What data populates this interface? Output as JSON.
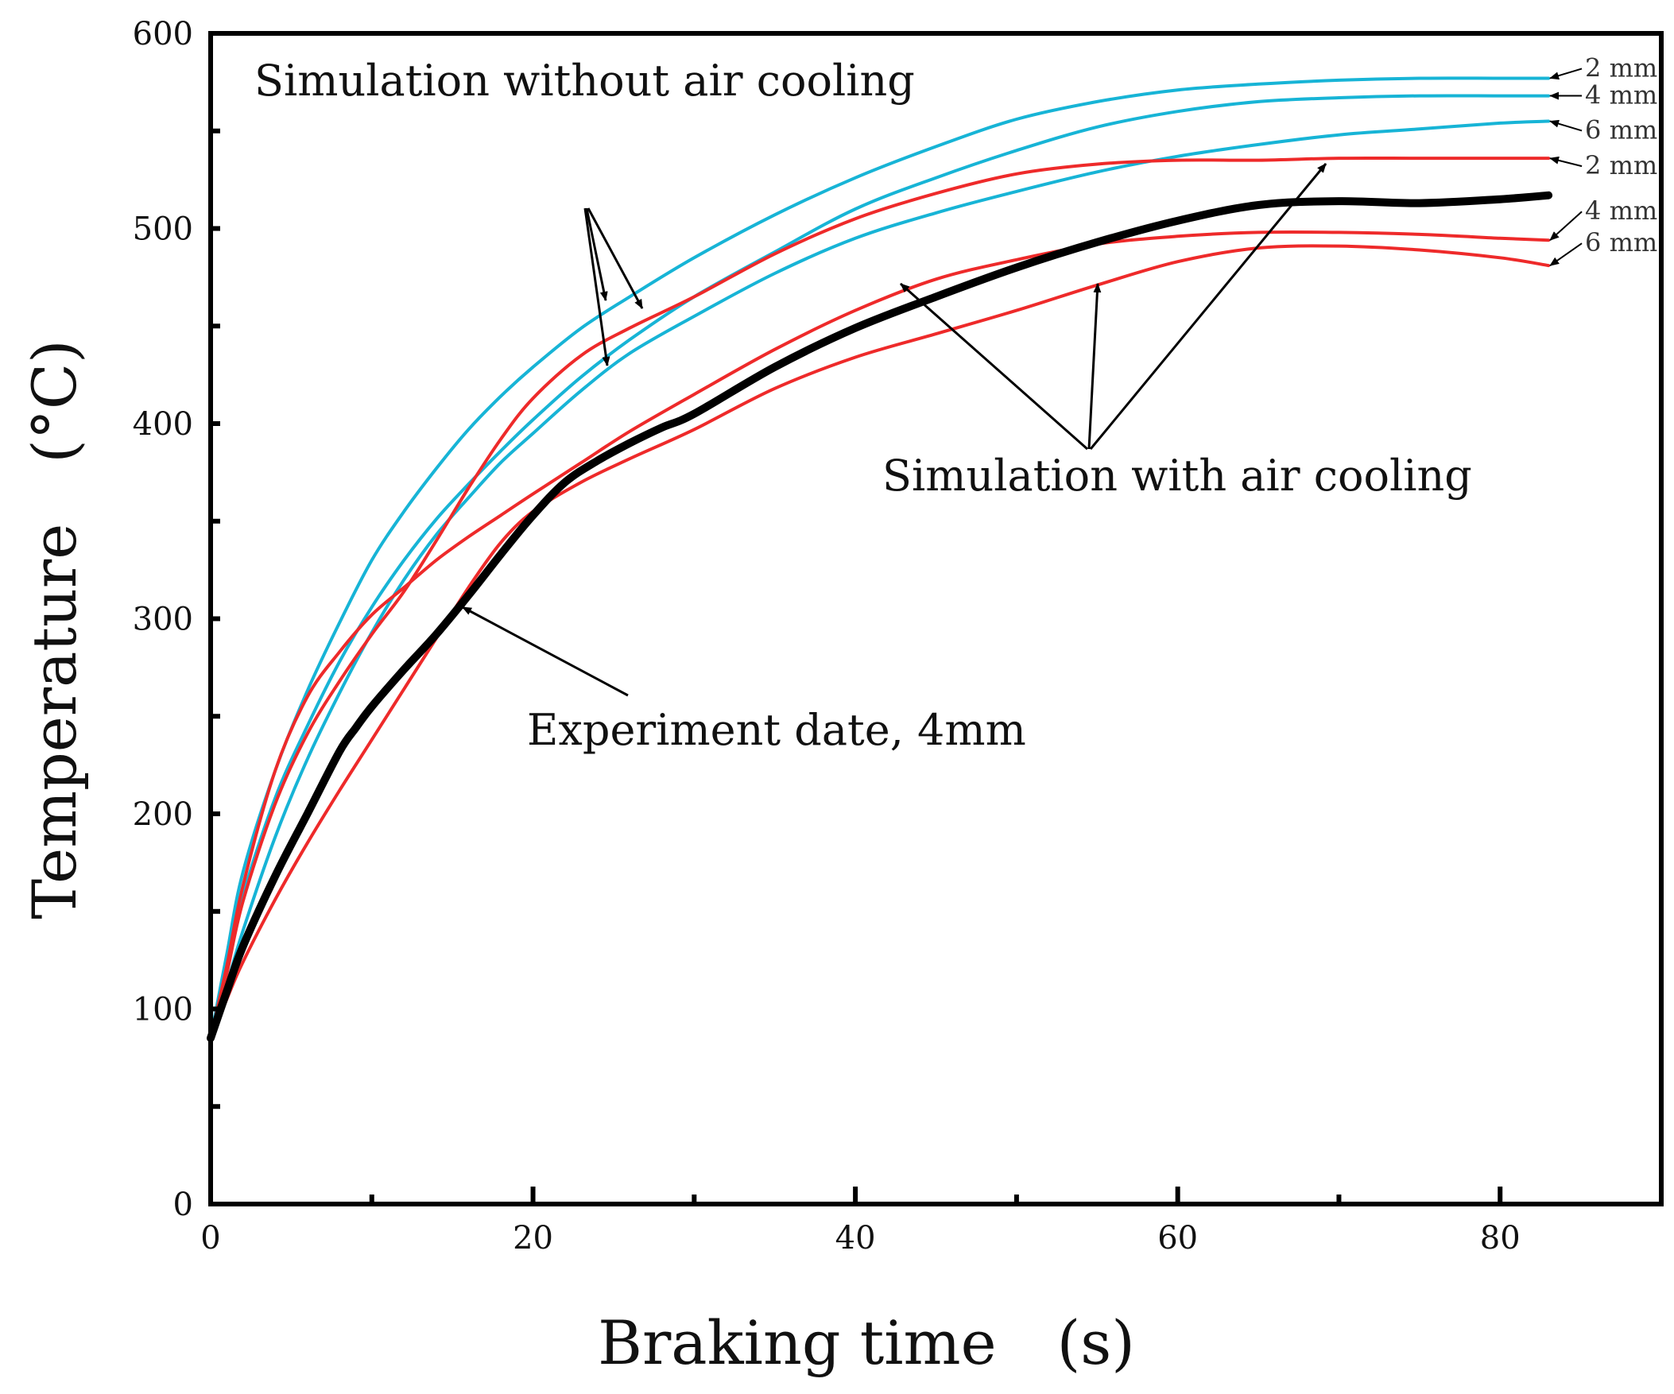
{
  "chart_data": {
    "type": "line",
    "title": "",
    "xlabel": "Braking time　(s)",
    "ylabel": "Temperature　(°C)",
    "xlim": [
      0,
      90
    ],
    "ylim": [
      0,
      600
    ],
    "x_ticks": [
      0,
      20,
      40,
      60,
      80
    ],
    "x_tick_labels": [
      "0",
      "20",
      "40",
      "60",
      "80"
    ],
    "y_ticks": [
      0,
      100,
      200,
      300,
      400,
      500,
      600
    ],
    "y_tick_labels": [
      "0",
      "100",
      "200",
      "300",
      "400",
      "500",
      "600"
    ],
    "grid": false,
    "colors": {
      "without_air_cooling": "#17b4d6",
      "with_air_cooling": "#ee2a2a",
      "experiment": "#000000"
    },
    "series": [
      {
        "name": "Simulation without air cooling, 2 mm",
        "group": "without_air_cooling",
        "end_label": "2 mm",
        "x": [
          0,
          1,
          2,
          4,
          6,
          8,
          10,
          12,
          14,
          16,
          18,
          20,
          23,
          26,
          30,
          35,
          40,
          45,
          50,
          55,
          60,
          65,
          70,
          75,
          80,
          83
        ],
        "y": [
          85,
          128,
          170,
          222,
          263,
          298,
          330,
          355,
          377,
          397,
          414,
          429,
          449,
          465,
          485,
          507,
          526,
          542,
          556,
          565,
          571,
          574,
          576,
          577,
          577,
          577
        ]
      },
      {
        "name": "Simulation without air cooling, 4 mm",
        "group": "without_air_cooling",
        "end_label": "4 mm",
        "x": [
          0,
          1,
          2,
          4,
          6,
          8,
          10,
          12,
          14,
          16,
          18,
          20,
          23,
          26,
          30,
          35,
          40,
          45,
          50,
          55,
          60,
          65,
          70,
          75,
          80,
          83
        ],
        "y": [
          85,
          120,
          158,
          208,
          245,
          278,
          306,
          330,
          351,
          369,
          386,
          402,
          424,
          443,
          465,
          488,
          510,
          526,
          540,
          552,
          560,
          565,
          567,
          568,
          568,
          568
        ]
      },
      {
        "name": "Simulation without air cooling, 6 mm",
        "group": "without_air_cooling",
        "end_label": "6 mm",
        "x": [
          0,
          1,
          2,
          4,
          6,
          8,
          10,
          12,
          14,
          16,
          18,
          20,
          23,
          26,
          30,
          35,
          40,
          45,
          50,
          55,
          60,
          65,
          70,
          75,
          80,
          83
        ],
        "y": [
          85,
          112,
          140,
          188,
          228,
          262,
          293,
          320,
          343,
          362,
          380,
          395,
          417,
          436,
          455,
          477,
          495,
          508,
          519,
          529,
          537,
          543,
          548,
          551,
          554,
          555
        ]
      },
      {
        "name": "Simulation with air cooling, 2 mm",
        "group": "with_air_cooling",
        "end_label": "2 mm",
        "x": [
          0,
          1,
          2,
          4,
          6,
          8,
          10,
          12,
          14,
          16,
          18,
          20,
          23,
          26,
          30,
          35,
          40,
          45,
          50,
          55,
          60,
          65,
          70,
          75,
          80,
          83
        ],
        "y": [
          85,
          118,
          155,
          205,
          241,
          268,
          292,
          314,
          340,
          367,
          392,
          413,
          435,
          449,
          465,
          487,
          505,
          518,
          528,
          533,
          535,
          535,
          536,
          536,
          536,
          536
        ]
      },
      {
        "name": "Simulation with air cooling, 4 mm",
        "group": "with_air_cooling",
        "end_label": "4 mm",
        "x": [
          0,
          1,
          2,
          4,
          6,
          8,
          10,
          12,
          14,
          16,
          18,
          20,
          23,
          26,
          30,
          35,
          40,
          45,
          50,
          55,
          60,
          65,
          70,
          75,
          80,
          83
        ],
        "y": [
          85,
          122,
          163,
          222,
          260,
          283,
          302,
          316,
          330,
          342,
          353,
          364,
          380,
          396,
          415,
          438,
          458,
          474,
          484,
          492,
          496,
          498,
          498,
          497,
          495,
          494
        ]
      },
      {
        "name": "Simulation with air cooling, 6 mm",
        "group": "with_air_cooling",
        "end_label": "6 mm",
        "x": [
          0,
          1,
          2,
          4,
          6,
          8,
          10,
          12,
          14,
          16,
          18,
          20,
          23,
          26,
          30,
          35,
          40,
          45,
          50,
          55,
          60,
          65,
          70,
          75,
          80,
          83
        ],
        "y": [
          85,
          105,
          124,
          156,
          185,
          212,
          238,
          264,
          290,
          316,
          339,
          355,
          370,
          382,
          397,
          418,
          434,
          446,
          458,
          471,
          483,
          490,
          491,
          489,
          485,
          481
        ]
      },
      {
        "name": "Experiment date, 4mm",
        "group": "experiment",
        "end_label": "",
        "x": [
          0,
          1,
          2,
          4,
          6,
          8,
          9,
          10,
          12,
          14,
          16,
          18,
          20,
          22,
          24,
          26,
          28,
          30,
          35,
          40,
          45,
          50,
          55,
          60,
          65,
          70,
          75,
          80,
          83
        ],
        "y": [
          85,
          109,
          132,
          168,
          200,
          232,
          244,
          255,
          274,
          292,
          312,
          333,
          353,
          370,
          381,
          390,
          398,
          405,
          429,
          449,
          465,
          480,
          493,
          504,
          512,
          514,
          513,
          515,
          517
        ]
      }
    ],
    "annotations": [
      {
        "text": "Simulation without air cooling",
        "anchor_series": [
          0,
          1,
          2
        ]
      },
      {
        "text": "Simulation with air cooling",
        "anchor_series": [
          3,
          4,
          5
        ]
      },
      {
        "text": "Experiment date, 4mm",
        "anchor_series": [
          6
        ]
      }
    ]
  }
}
